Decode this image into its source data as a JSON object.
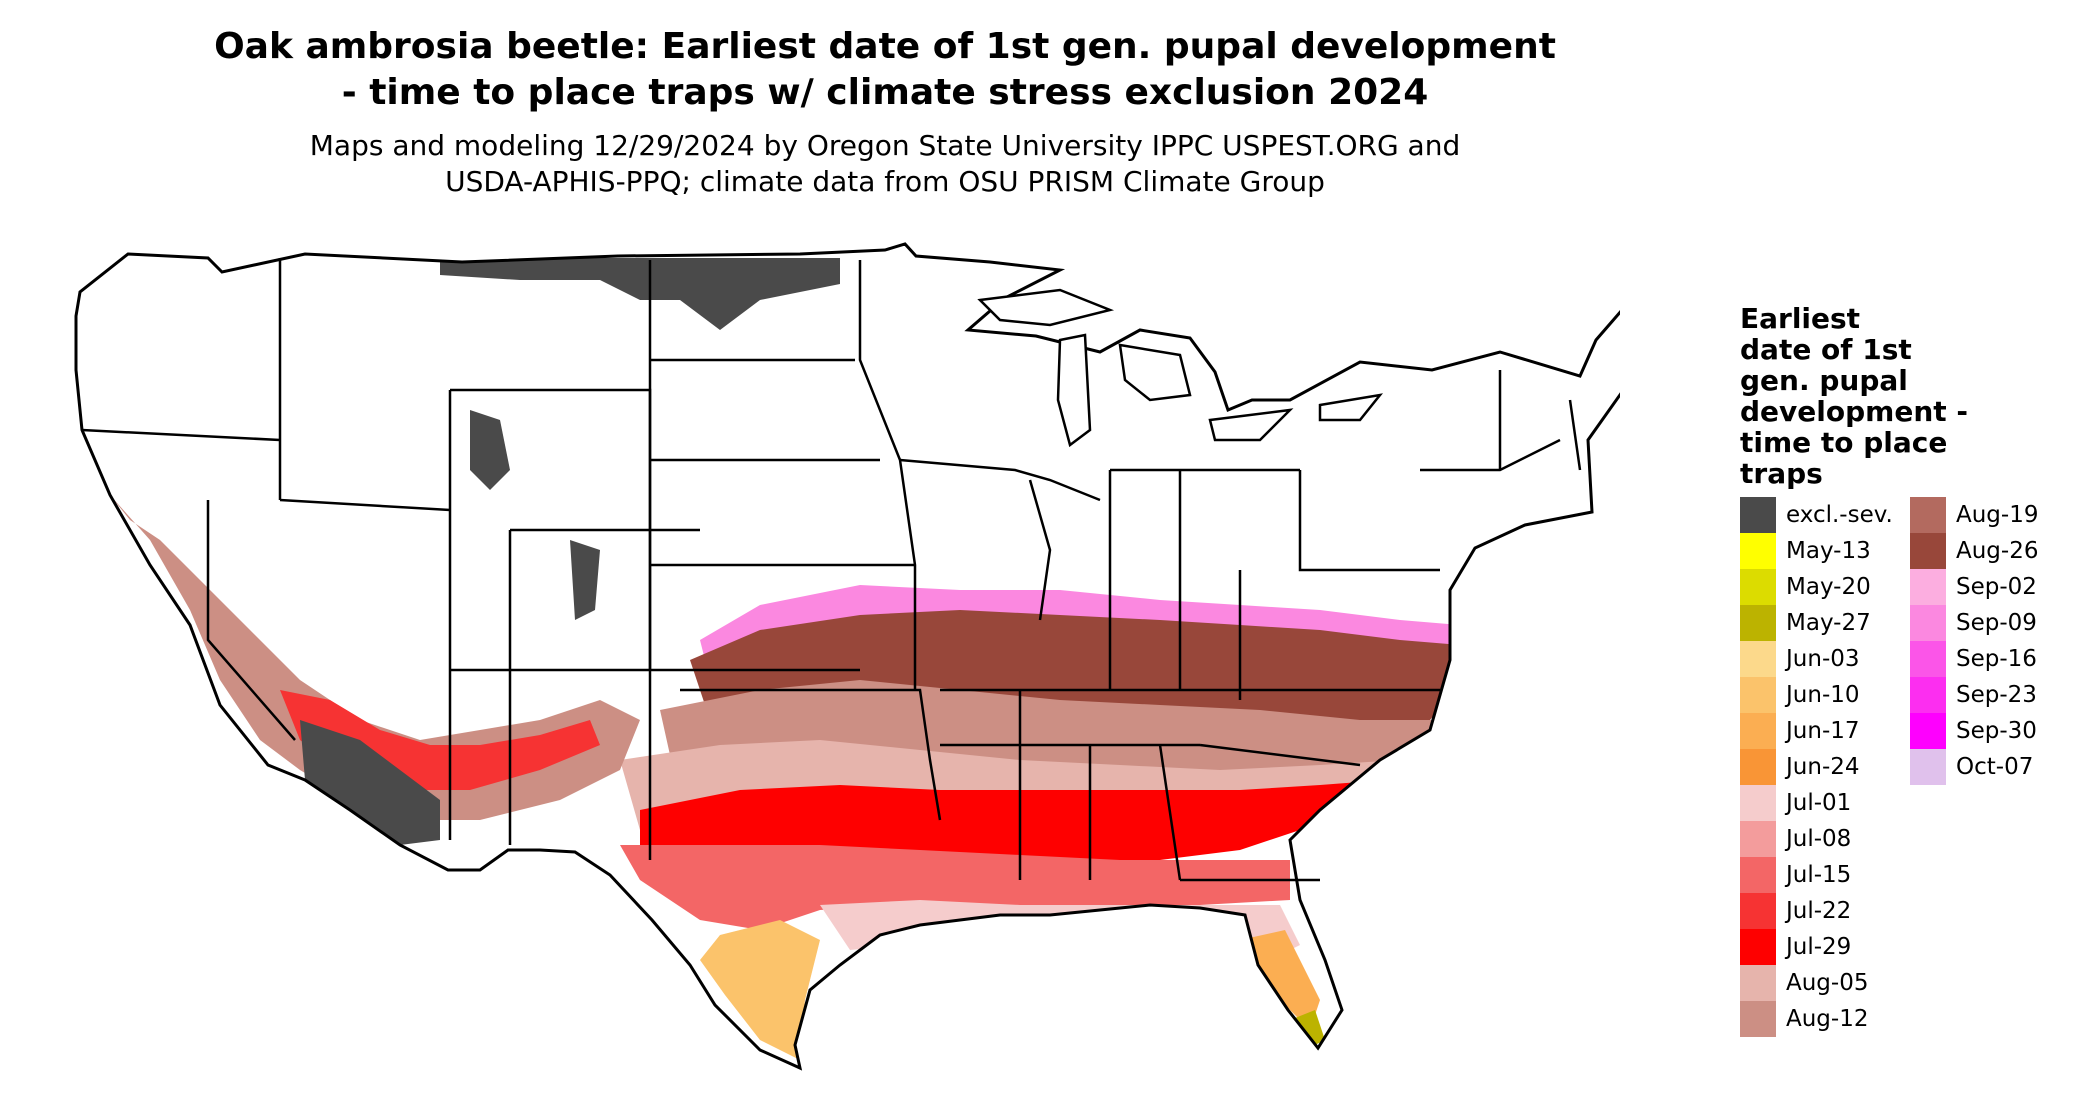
{
  "title": {
    "line1": "Oak ambrosia beetle: Earliest date of 1st gen. pupal development",
    "line2": "- time to place traps w/ climate stress exclusion 2024"
  },
  "subtitle": {
    "line1": "Maps and modeling 12/29/2024 by Oregon State University IPPC USPEST.ORG and",
    "line2": "USDA-APHIS-PPQ; climate data from OSU PRISM Climate Group"
  },
  "legend": {
    "title_lines": [
      "Earliest",
      "date of 1st",
      "gen. pupal",
      "development -",
      "time to place",
      "traps"
    ],
    "items": [
      {
        "label": "excl.-sev.",
        "color": "#4a4a4a"
      },
      {
        "label": "May-13",
        "color": "#ffff00"
      },
      {
        "label": "May-20",
        "color": "#dcdc00"
      },
      {
        "label": "May-27",
        "color": "#bcb300"
      },
      {
        "label": "Jun-03",
        "color": "#fcd98b"
      },
      {
        "label": "Jun-10",
        "color": "#fbc36b"
      },
      {
        "label": "Jun-17",
        "color": "#fbae52"
      },
      {
        "label": "Jun-24",
        "color": "#f99536"
      },
      {
        "label": "Jul-01",
        "color": "#f5cccc"
      },
      {
        "label": "Jul-08",
        "color": "#f39c9c"
      },
      {
        "label": "Jul-15",
        "color": "#f36666"
      },
      {
        "label": "Jul-22",
        "color": "#f63333"
      },
      {
        "label": "Jul-29",
        "color": "#fe0000"
      },
      {
        "label": "Aug-05",
        "color": "#e6b4ac"
      },
      {
        "label": "Aug-12",
        "color": "#cc8f84"
      },
      {
        "label": "Aug-19",
        "color": "#b36a5f"
      },
      {
        "label": "Aug-26",
        "color": "#98473a"
      },
      {
        "label": "Sep-02",
        "color": "#fcaee0"
      },
      {
        "label": "Sep-09",
        "color": "#fb88e0"
      },
      {
        "label": "Sep-16",
        "color": "#fb55e8"
      },
      {
        "label": "Sep-23",
        "color": "#fc2ef0"
      },
      {
        "label": "Sep-30",
        "color": "#fe00fe"
      },
      {
        "label": "Oct-07",
        "color": "#e0c1ec"
      }
    ]
  },
  "map": {
    "outline_color": "#000000",
    "land_color": "#ffffff"
  }
}
